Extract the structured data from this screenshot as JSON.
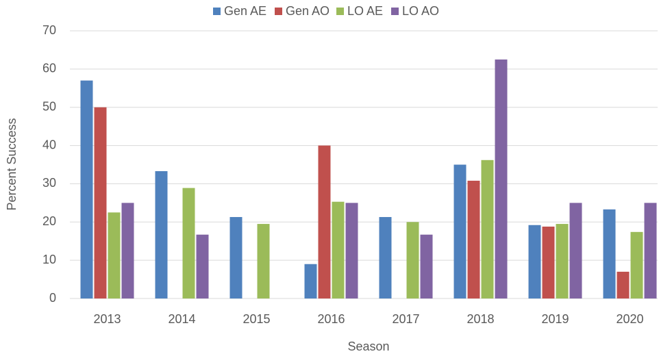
{
  "chart_data": {
    "type": "bar",
    "categories": [
      "2013",
      "2014",
      "2015",
      "2016",
      "2017",
      "2018",
      "2019",
      "2020"
    ],
    "series": [
      {
        "name": "Gen AE",
        "color": "#4f81bd",
        "values": [
          57,
          33.3,
          21.3,
          9,
          21.3,
          35,
          19.2,
          23.3
        ]
      },
      {
        "name": "Gen AO",
        "color": "#c0504d",
        "values": [
          50,
          0,
          0,
          40,
          0,
          30.8,
          18.8,
          7
        ]
      },
      {
        "name": "LO AE",
        "color": "#9bbb59",
        "values": [
          22.5,
          28.9,
          19.5,
          25.3,
          20,
          36.2,
          19.5,
          17.4
        ]
      },
      {
        "name": "LO AO",
        "color": "#8064a2",
        "values": [
          25,
          16.7,
          0,
          25,
          16.7,
          62.5,
          25,
          25
        ]
      }
    ],
    "xlabel": "Season",
    "ylabel": "Percent Success",
    "ylim": [
      0,
      70
    ],
    "yticks": [
      0,
      10,
      20,
      30,
      40,
      50,
      60,
      70
    ],
    "grid": true,
    "legend": "top"
  }
}
